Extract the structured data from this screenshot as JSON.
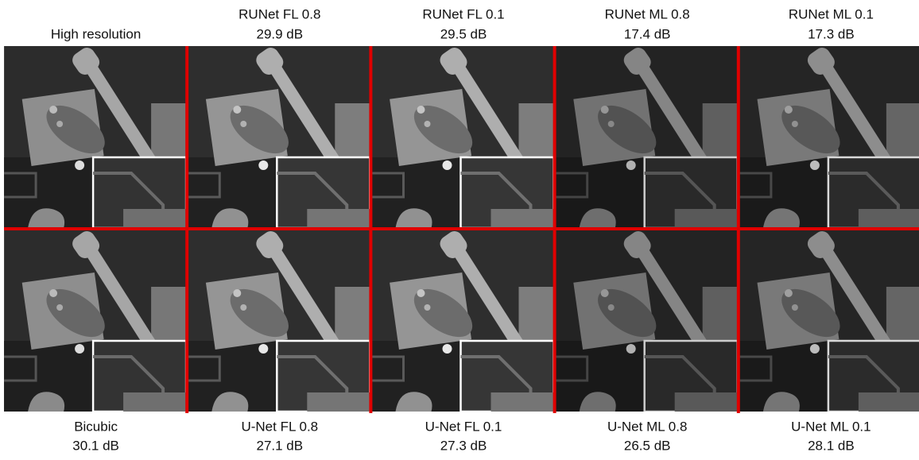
{
  "figure": {
    "top_row": [
      {
        "method": "High resolution"
      },
      {
        "method": "RUNet FL 0.8",
        "psnr": "29.9 dB"
      },
      {
        "method": "RUNet FL 0.1",
        "psnr": "29.5 dB"
      },
      {
        "method": "RUNet ML 0.8",
        "psnr": "17.4 dB"
      },
      {
        "method": "RUNet ML 0.1",
        "psnr": "17.3 dB"
      }
    ],
    "bottom_row": [
      {
        "method": "Bicubic",
        "psnr": "30.1 dB"
      },
      {
        "method": "U-Net FL 0.8",
        "psnr": "27.1 dB"
      },
      {
        "method": "U-Net FL 0.1",
        "psnr": "27.3 dB"
      },
      {
        "method": "U-Net ML 0.8",
        "psnr": "26.5 dB"
      },
      {
        "method": "U-Net ML 0.1",
        "psnr": "28.1 dB"
      }
    ]
  }
}
